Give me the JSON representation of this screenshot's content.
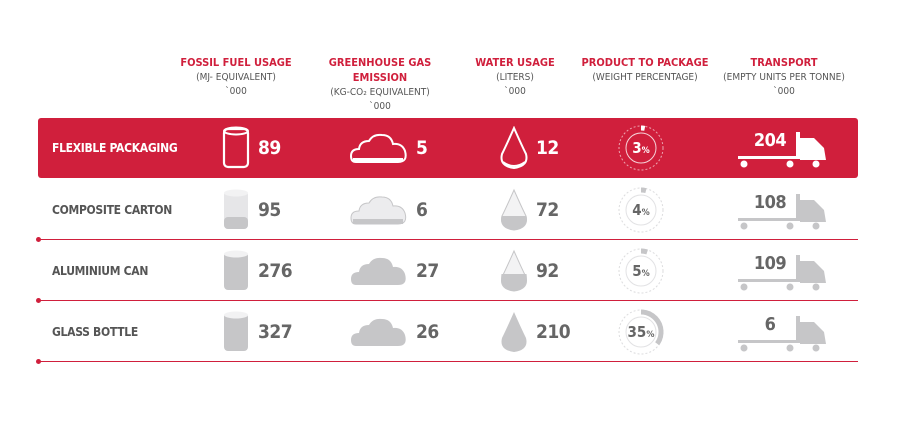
{
  "chart_data": {
    "type": "table",
    "columns": [
      {
        "title": "FOSSIL FUEL USAGE",
        "sub": "(MJ- EQUIVALENT)",
        "unit": "`000"
      },
      {
        "title": "GREENHOUSE GAS EMISSION",
        "sub": "(KG-CO₂ EQUIVALENT)",
        "unit": "`000"
      },
      {
        "title": "WATER USAGE",
        "sub": "(LITERS)",
        "unit": "`000"
      },
      {
        "title": "PRODUCT TO PACKAGE",
        "sub": "(WEIGHT PERCENTAGE)",
        "unit": ""
      },
      {
        "title": "TRANSPORT",
        "sub": "(EMPTY UNITS PER TONNE)",
        "unit": "`000"
      }
    ],
    "rows": [
      {
        "label": "FLEXIBLE PACKAGING",
        "fossil": 89,
        "ghg": 5,
        "water": 12,
        "product_pct": 3,
        "transport": 204,
        "highlight": true
      },
      {
        "label": "COMPOSITE CARTON",
        "fossil": 95,
        "ghg": 6,
        "water": 72,
        "product_pct": 4,
        "transport": 108,
        "highlight": false
      },
      {
        "label": "ALUMINIUM CAN",
        "fossil": 276,
        "ghg": 27,
        "water": 92,
        "product_pct": 5,
        "transport": 109,
        "highlight": false
      },
      {
        "label": "GLASS BOTTLE",
        "fossil": 327,
        "ghg": 26,
        "water": 210,
        "product_pct": 35,
        "transport": 6,
        "highlight": false
      }
    ],
    "percent_sign": "%"
  },
  "colors": {
    "accent": "#d01f3c",
    "icon_gray": "#c6c6c8",
    "icon_light": "#e6e6e8",
    "text": "#666666"
  },
  "icons": [
    "cylinder-icon",
    "cloud-icon",
    "water-drop-icon",
    "percent-ring-icon",
    "truck-icon"
  ]
}
